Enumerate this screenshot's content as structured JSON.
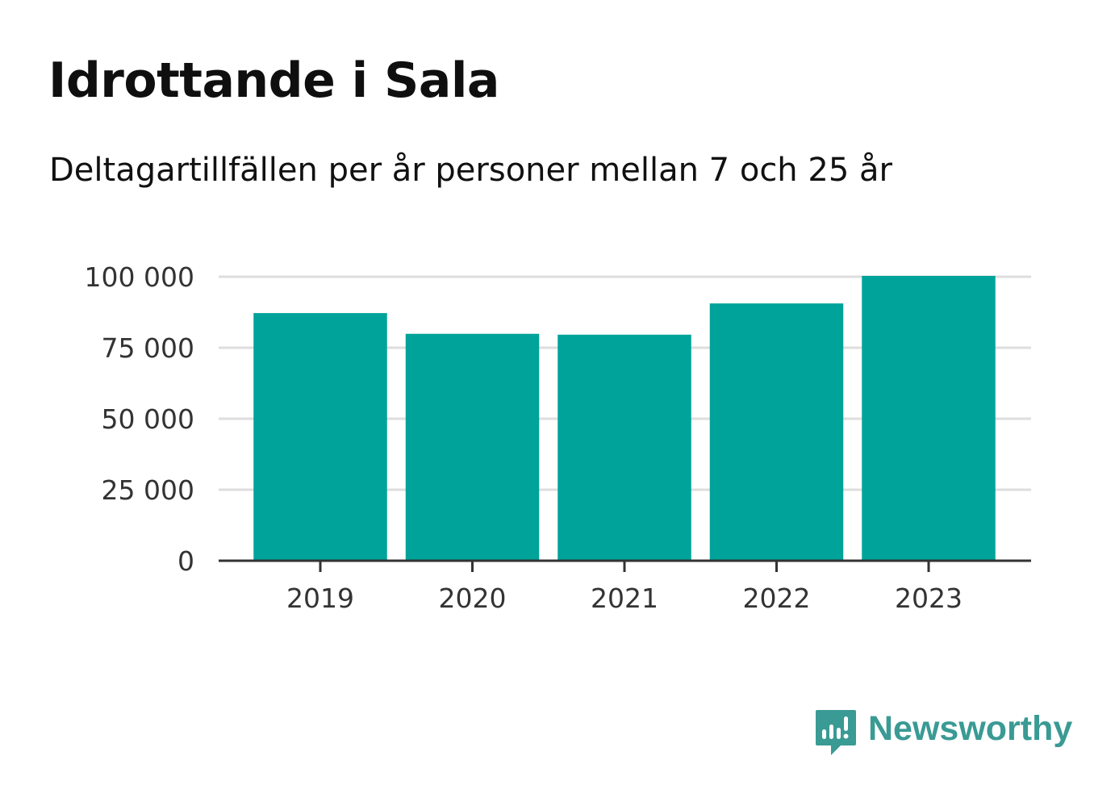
{
  "header": {
    "title": "Idrottande i Sala",
    "subtitle": "Deltagartillfällen per år personer mellan 7 och 25 år"
  },
  "brand": {
    "name": "Newsworthy",
    "icon": "newsworthy-logo-icon",
    "color": "#3a9a94"
  },
  "chart_data": {
    "type": "bar",
    "categories": [
      "2019",
      "2020",
      "2021",
      "2022",
      "2023"
    ],
    "values": [
      87200,
      79900,
      79600,
      90600,
      100300
    ],
    "ylim": [
      0,
      100000
    ],
    "yticks": [
      0,
      25000,
      50000,
      75000,
      100000
    ],
    "ytick_labels": [
      "0",
      "25 000",
      "50 000",
      "75 000",
      "100 000"
    ],
    "bar_color": "#00a39a",
    "grid": true,
    "legend": "none"
  }
}
